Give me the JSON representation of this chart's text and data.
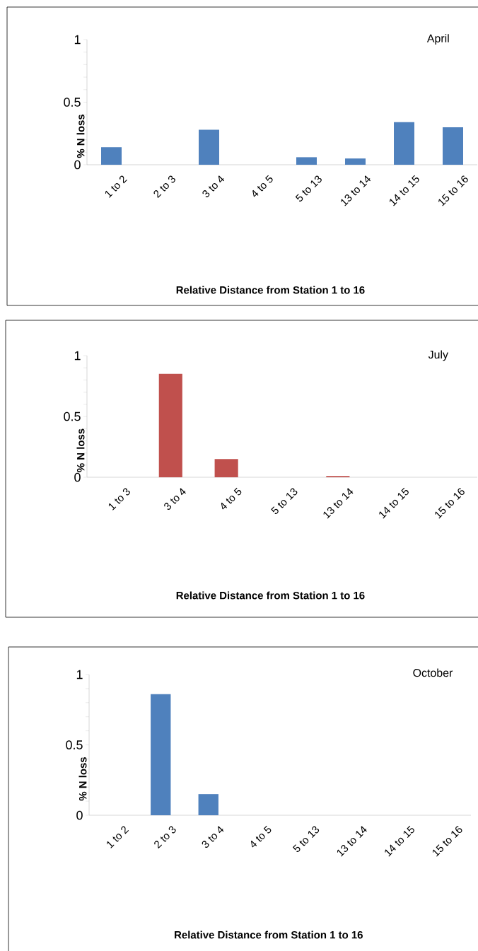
{
  "chart_data": [
    {
      "type": "bar",
      "title": "April",
      "xlabel": "Relative Distance from Station 1 to 16",
      "ylabel": "% N loss",
      "categories": [
        "1 to 2",
        "2 to 3",
        "3 to 4",
        "4 to 5",
        "5 to 13",
        "13 to 14",
        "14 to 15",
        "15 to 16"
      ],
      "values": [
        0.14,
        0,
        0.28,
        0,
        0.06,
        0.05,
        0.34,
        0.3
      ],
      "color": "#4f81bd",
      "ylim": [
        0,
        1
      ],
      "yticks": [
        0,
        {
          "value": 0.1,
          "label": null
        },
        {
          "value": 0.2,
          "label": null
        },
        {
          "value": 0.3,
          "label": null
        },
        {
          "value": 0.4,
          "label": null
        },
        0.5,
        {
          "value": 0.6,
          "label": null
        },
        {
          "value": 0.7,
          "label": null
        },
        {
          "value": 0.8,
          "label": null
        },
        {
          "value": 0.9,
          "label": null
        },
        1
      ]
    },
    {
      "type": "bar",
      "title": "July",
      "xlabel": "Relative Distance from Station 1 to 16",
      "ylabel": "% N loss",
      "categories": [
        "1 to 3",
        "3 to 4",
        "4 to 5",
        "5 to 13",
        "13 to 14",
        "14 to 15",
        "15 to 16"
      ],
      "values": [
        0,
        0.85,
        0.15,
        0,
        0.01,
        0,
        0
      ],
      "color": "#c0504d",
      "ylim": [
        0,
        1
      ],
      "yticks": [
        0,
        {
          "value": 0.1,
          "label": null
        },
        {
          "value": 0.2,
          "label": null
        },
        {
          "value": 0.3,
          "label": null
        },
        {
          "value": 0.4,
          "label": null
        },
        0.5,
        {
          "value": 0.6,
          "label": null
        },
        {
          "value": 0.7,
          "label": null
        },
        {
          "value": 0.8,
          "label": null
        },
        {
          "value": 0.9,
          "label": null
        },
        1
      ]
    },
    {
      "type": "bar",
      "title": "October",
      "xlabel": "Relative Distance from Station 1 to 16",
      "ylabel": "% N loss",
      "categories": [
        "1 to 2",
        "2 to 3",
        "3 to 4",
        "4 to 5",
        "5 to 13",
        "13 to 14",
        "14 to 15",
        "15 to 16"
      ],
      "values": [
        0,
        0.86,
        0.15,
        0,
        0,
        0,
        0,
        0
      ],
      "color": "#4f81bd",
      "ylim": [
        0,
        1
      ],
      "yticks": [
        0,
        {
          "value": 0.1,
          "label": null
        },
        {
          "value": 0.2,
          "label": null
        },
        {
          "value": 0.3,
          "label": null
        },
        {
          "value": 0.4,
          "label": null
        },
        0.5,
        {
          "value": 0.6,
          "label": null
        },
        {
          "value": 0.7,
          "label": null
        },
        {
          "value": 0.8,
          "label": null
        },
        {
          "value": 0.9,
          "label": null
        },
        1
      ]
    }
  ]
}
